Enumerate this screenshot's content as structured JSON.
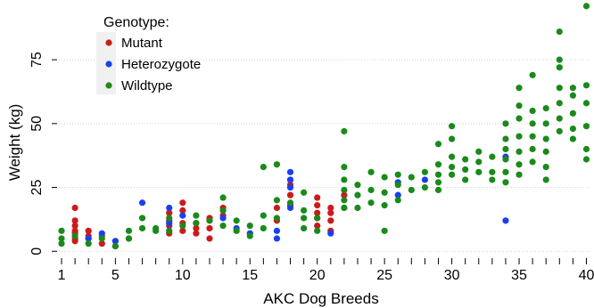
{
  "chart_data": {
    "type": "scatter",
    "xlabel": "AKC Dog Breeds",
    "ylabel": "Weight (kg)",
    "xlim": [
      0.8,
      40.3
    ],
    "ylim": [
      -2,
      97
    ],
    "x_ticks": [
      1,
      5,
      10,
      15,
      20,
      25,
      30,
      35,
      40
    ],
    "x_minor_ticks": [
      2,
      3,
      4,
      6,
      7,
      8,
      9,
      11,
      12,
      13,
      14,
      16,
      17,
      18,
      19,
      21,
      22,
      23,
      24,
      26,
      27,
      28,
      29,
      31,
      32,
      33,
      34,
      36,
      37,
      38,
      39
    ],
    "y_ticks": [
      0,
      25,
      50,
      75
    ],
    "grid": "horizontal",
    "legend": {
      "title": "Genotype:",
      "position": "top-left",
      "entries": [
        {
          "label": "Mutant",
          "color": "#cc1a1a"
        },
        {
          "label": "Heterozygote",
          "color": "#1a3ff2"
        },
        {
          "label": "Wildtype",
          "color": "#1a8a1a"
        }
      ]
    },
    "series": [
      {
        "name": "Mutant",
        "color": "#cc1a1a",
        "points": [
          [
            2,
            17
          ],
          [
            2,
            12
          ],
          [
            2,
            10
          ],
          [
            2,
            8
          ],
          [
            2,
            7
          ],
          [
            2,
            5
          ],
          [
            2,
            4
          ],
          [
            3,
            8
          ],
          [
            3,
            6
          ],
          [
            3,
            5
          ],
          [
            4,
            6
          ],
          [
            4,
            3
          ],
          [
            5,
            4
          ],
          [
            5,
            2
          ],
          [
            9,
            15
          ],
          [
            9,
            12
          ],
          [
            9,
            10
          ],
          [
            9,
            7
          ],
          [
            10,
            19
          ],
          [
            10,
            16
          ],
          [
            10,
            11
          ],
          [
            10,
            8
          ],
          [
            11,
            11
          ],
          [
            11,
            9
          ],
          [
            11,
            7
          ],
          [
            12,
            13
          ],
          [
            12,
            9
          ],
          [
            12,
            5
          ],
          [
            13,
            14
          ],
          [
            13,
            17
          ],
          [
            17,
            17
          ],
          [
            17,
            12
          ],
          [
            18,
            28
          ],
          [
            18,
            26
          ],
          [
            18,
            22
          ],
          [
            18,
            18
          ],
          [
            20,
            21
          ],
          [
            20,
            18
          ],
          [
            20,
            15
          ],
          [
            20,
            13
          ],
          [
            20,
            10
          ],
          [
            21,
            17
          ],
          [
            21,
            15
          ],
          [
            21,
            12
          ],
          [
            21,
            8
          ],
          [
            22,
            22
          ],
          [
            22,
            17
          ]
        ]
      },
      {
        "name": "Heterozygote",
        "color": "#1a3ff2",
        "points": [
          [
            3,
            5
          ],
          [
            4,
            7
          ],
          [
            5,
            4
          ],
          [
            6,
            5
          ],
          [
            7,
            19
          ],
          [
            9,
            17
          ],
          [
            9,
            11
          ],
          [
            10,
            14
          ],
          [
            13,
            13
          ],
          [
            14,
            9
          ],
          [
            15,
            7
          ],
          [
            17,
            8
          ],
          [
            17,
            5
          ],
          [
            18,
            31
          ],
          [
            18,
            28
          ],
          [
            18,
            25
          ],
          [
            18,
            17
          ],
          [
            21,
            7
          ],
          [
            26,
            27
          ],
          [
            26,
            22
          ],
          [
            28,
            28
          ],
          [
            34,
            37
          ],
          [
            34,
            12
          ]
        ]
      },
      {
        "name": "Wildtype",
        "color": "#1a8a1a",
        "points": [
          [
            1,
            8
          ],
          [
            1,
            5
          ],
          [
            1,
            3
          ],
          [
            2,
            6
          ],
          [
            3,
            3
          ],
          [
            4,
            5
          ],
          [
            5,
            2
          ],
          [
            6,
            8
          ],
          [
            6,
            5
          ],
          [
            7,
            13
          ],
          [
            7,
            9
          ],
          [
            8,
            9
          ],
          [
            8,
            8
          ],
          [
            9,
            13
          ],
          [
            9,
            8
          ],
          [
            10,
            10
          ],
          [
            11,
            14
          ],
          [
            11,
            11
          ],
          [
            12,
            12
          ],
          [
            13,
            21
          ],
          [
            13,
            16
          ],
          [
            13,
            10
          ],
          [
            14,
            12
          ],
          [
            14,
            8
          ],
          [
            15,
            10
          ],
          [
            15,
            6
          ],
          [
            16,
            33
          ],
          [
            16,
            14
          ],
          [
            16,
            9
          ],
          [
            17,
            34
          ],
          [
            17,
            20
          ],
          [
            17,
            13
          ],
          [
            18,
            19
          ],
          [
            19,
            23
          ],
          [
            19,
            16
          ],
          [
            19,
            13
          ],
          [
            19,
            9
          ],
          [
            20,
            13
          ],
          [
            20,
            8
          ],
          [
            22,
            47
          ],
          [
            22,
            33
          ],
          [
            22,
            28
          ],
          [
            22,
            24
          ],
          [
            22,
            20
          ],
          [
            22,
            17
          ],
          [
            23,
            26
          ],
          [
            23,
            22
          ],
          [
            23,
            17
          ],
          [
            24,
            31
          ],
          [
            24,
            24
          ],
          [
            24,
            19
          ],
          [
            25,
            29
          ],
          [
            25,
            23
          ],
          [
            25,
            18
          ],
          [
            25,
            8
          ],
          [
            26,
            30
          ],
          [
            26,
            26
          ],
          [
            26,
            20
          ],
          [
            27,
            29
          ],
          [
            27,
            24
          ],
          [
            28,
            31
          ],
          [
            28,
            25
          ],
          [
            29,
            42
          ],
          [
            29,
            34
          ],
          [
            29,
            30
          ],
          [
            29,
            27
          ],
          [
            29,
            24
          ],
          [
            30,
            49
          ],
          [
            30,
            44
          ],
          [
            30,
            37
          ],
          [
            30,
            33
          ],
          [
            30,
            30
          ],
          [
            31,
            36
          ],
          [
            31,
            32
          ],
          [
            31,
            28
          ],
          [
            32,
            39
          ],
          [
            32,
            35
          ],
          [
            32,
            31
          ],
          [
            33,
            37
          ],
          [
            33,
            31
          ],
          [
            33,
            28
          ],
          [
            34,
            50
          ],
          [
            34,
            44
          ],
          [
            34,
            40
          ],
          [
            34,
            36
          ],
          [
            34,
            31
          ],
          [
            34,
            27
          ],
          [
            35,
            64
          ],
          [
            35,
            57
          ],
          [
            35,
            52
          ],
          [
            35,
            45
          ],
          [
            35,
            39
          ],
          [
            35,
            34
          ],
          [
            35,
            30
          ],
          [
            36,
            69
          ],
          [
            36,
            55
          ],
          [
            36,
            50
          ],
          [
            36,
            45
          ],
          [
            36,
            40
          ],
          [
            36,
            35
          ],
          [
            37,
            56
          ],
          [
            37,
            50
          ],
          [
            37,
            44
          ],
          [
            37,
            39
          ],
          [
            37,
            33
          ],
          [
            37,
            28
          ],
          [
            38,
            86
          ],
          [
            38,
            75
          ],
          [
            38,
            72
          ],
          [
            38,
            64
          ],
          [
            38,
            58
          ],
          [
            38,
            52
          ],
          [
            38,
            47
          ],
          [
            39,
            64
          ],
          [
            39,
            61
          ],
          [
            39,
            54
          ],
          [
            39,
            48
          ],
          [
            39,
            44
          ],
          [
            40,
            96
          ],
          [
            40,
            65
          ],
          [
            40,
            58
          ],
          [
            40,
            49
          ],
          [
            40,
            40
          ],
          [
            40,
            36
          ]
        ]
      }
    ]
  }
}
